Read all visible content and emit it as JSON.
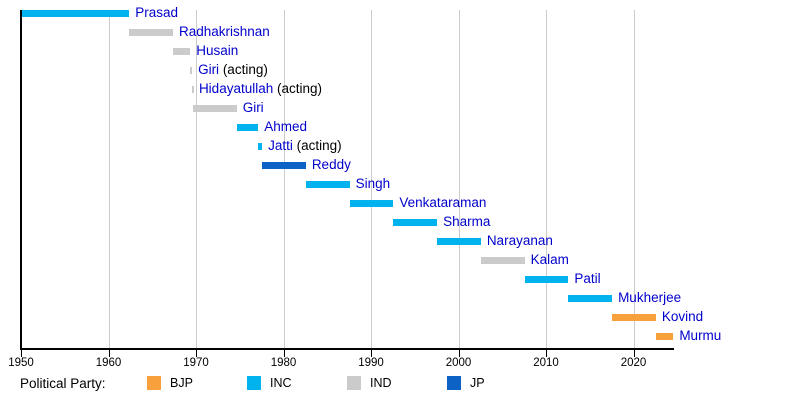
{
  "chart_data": {
    "type": "bar",
    "variant": "horizontal-timeline-gantt",
    "subject": "Terms of Presidents of India by political party",
    "x_axis": {
      "tick_labels": [
        "1950",
        "1960",
        "1970",
        "1980",
        "1990",
        "2000",
        "2010",
        "2020"
      ],
      "tick_years": [
        1950,
        1960,
        1970,
        1980,
        1990,
        2000,
        2010,
        2020
      ],
      "range": [
        1950,
        2024.6
      ],
      "grid": true
    },
    "bars": [
      {
        "name": "Prasad",
        "suffix": "",
        "party": "INC",
        "start": 1950.07,
        "end": 1962.37
      },
      {
        "name": "Radhakrishnan",
        "suffix": "",
        "party": "IND",
        "start": 1962.37,
        "end": 1967.37
      },
      {
        "name": "Husain",
        "suffix": "",
        "party": "IND",
        "start": 1967.37,
        "end": 1969.34
      },
      {
        "name": "Giri",
        "suffix": " (acting)",
        "party": "IND",
        "start": 1969.34,
        "end": 1969.55
      },
      {
        "name": "Hidayatullah",
        "suffix": " (acting)",
        "party": "IND",
        "start": 1969.55,
        "end": 1969.65
      },
      {
        "name": "Giri",
        "suffix": "",
        "party": "IND",
        "start": 1969.65,
        "end": 1974.65
      },
      {
        "name": "Ahmed",
        "suffix": "",
        "party": "INC",
        "start": 1974.65,
        "end": 1977.11
      },
      {
        "name": "Jatti",
        "suffix": " (acting)",
        "party": "INC",
        "start": 1977.11,
        "end": 1977.55
      },
      {
        "name": "Reddy",
        "suffix": "",
        "party": "JP",
        "start": 1977.55,
        "end": 1982.55
      },
      {
        "name": "Singh",
        "suffix": "",
        "party": "INC",
        "start": 1982.55,
        "end": 1987.55
      },
      {
        "name": "Venkataraman",
        "suffix": "",
        "party": "INC",
        "start": 1987.55,
        "end": 1992.55
      },
      {
        "name": "Sharma",
        "suffix": "",
        "party": "INC",
        "start": 1992.55,
        "end": 1997.55
      },
      {
        "name": "Narayanan",
        "suffix": "",
        "party": "INC",
        "start": 1997.55,
        "end": 2002.55
      },
      {
        "name": "Kalam",
        "suffix": "",
        "party": "IND",
        "start": 2002.55,
        "end": 2007.55
      },
      {
        "name": "Patil",
        "suffix": "",
        "party": "INC",
        "start": 2007.55,
        "end": 2012.55
      },
      {
        "name": "Mukherjee",
        "suffix": "",
        "party": "INC",
        "start": 2012.55,
        "end": 2017.55
      },
      {
        "name": "Kovind",
        "suffix": "",
        "party": "BJP",
        "start": 2017.55,
        "end": 2022.55
      },
      {
        "name": "Murmu",
        "suffix": "",
        "party": "BJP",
        "start": 2022.55,
        "end": 2024.55
      }
    ],
    "legend": {
      "label": "Political Party:",
      "position": "bottom",
      "items": [
        {
          "label": "BJP",
          "color": "#f8a13c"
        },
        {
          "label": "INC",
          "color": "#00b3ef"
        },
        {
          "label": "IND",
          "color": "#cbcbcb"
        },
        {
          "label": "JP",
          "color": "#0d63c5"
        }
      ]
    },
    "colors": {
      "name_link_blue": "#0000cc",
      "acting_text": "#000000",
      "gridline": "#cccccc",
      "axis": "#000000"
    }
  }
}
